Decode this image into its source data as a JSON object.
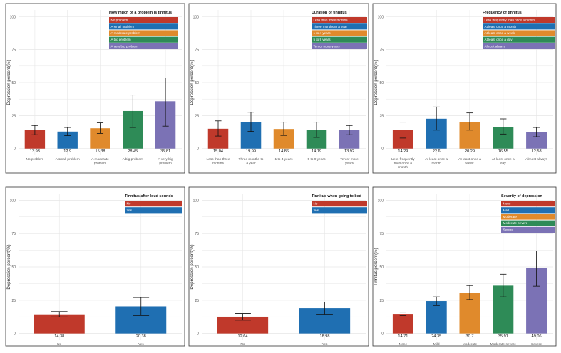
{
  "colors": {
    "red": "#c0392b",
    "blue": "#1f6fb2",
    "orange": "#e08a2c",
    "green": "#2e8b57",
    "purple": "#7b72b5",
    "grid": "#e6e6e6",
    "panel_border": "#333333"
  },
  "chart_data": [
    {
      "type": "bar",
      "ylabel": "Depression percent(%)",
      "ylim": [
        0,
        100
      ],
      "yticks": [
        "0",
        "25",
        "50",
        "75",
        "100"
      ],
      "legend_title": "How much of a problem is tinnitus",
      "categories": [
        "No problem",
        "A small problem",
        "A moderate problem",
        "A big problem",
        "A very big problem"
      ],
      "x_tick_labels": [
        [
          "No problem"
        ],
        [
          "A small problem"
        ],
        [
          "A moderate",
          "problem"
        ],
        [
          "A big problem"
        ],
        [
          "A very big",
          "problem"
        ]
      ],
      "values": [
        13.93,
        12.9,
        15.38,
        28.45,
        35.81
      ],
      "value_labels": [
        "13.93",
        "12.9",
        "15.38",
        "28.45",
        "35.81"
      ],
      "error_low": [
        10.5,
        9.8,
        11.5,
        16,
        17
      ],
      "error_high": [
        17.5,
        16,
        19.5,
        40.5,
        53.5
      ],
      "colors": [
        "#c0392b",
        "#1f6fb2",
        "#e08a2c",
        "#2e8b57",
        "#7b72b5"
      ]
    },
    {
      "type": "bar",
      "ylabel": "Depression percent(%)",
      "ylim": [
        0,
        100
      ],
      "yticks": [
        "0",
        "25",
        "50",
        "75",
        "100"
      ],
      "legend_title": "Duration of tinnitus",
      "categories": [
        "Less than three months",
        "Three months to a year",
        "1 to 4 years",
        "5 to 9 years",
        "Ten or more years"
      ],
      "x_tick_labels": [
        [
          "Less than three",
          "months"
        ],
        [
          "Three months to",
          "a year"
        ],
        [
          "1 to 4 years"
        ],
        [
          "5 to 9 years"
        ],
        [
          "Ten or more",
          "years"
        ]
      ],
      "values": [
        15.04,
        19.99,
        14.86,
        14.19,
        13.92
      ],
      "value_labels": [
        "15.04",
        "19.99",
        "14.86",
        "14.19",
        "13.92"
      ],
      "error_low": [
        9.5,
        13,
        10,
        8.5,
        10.5
      ],
      "error_high": [
        21,
        27.5,
        20,
        20,
        17.5
      ],
      "colors": [
        "#c0392b",
        "#1f6fb2",
        "#e08a2c",
        "#2e8b57",
        "#7b72b5"
      ]
    },
    {
      "type": "bar",
      "ylabel": "Depression percent(%)",
      "ylim": [
        0,
        100
      ],
      "yticks": [
        "0",
        "25",
        "50",
        "75",
        "100"
      ],
      "legend_title": "Frequency of tinnitus",
      "categories": [
        "Less frequently than once a month",
        "At least once a month",
        "At least once a week",
        "At least once a day",
        "Almost always"
      ],
      "x_tick_labels": [
        [
          "Less frequently",
          "than once a",
          "month"
        ],
        [
          "At least once a",
          "month"
        ],
        [
          "At least once a",
          "week"
        ],
        [
          "At least once a",
          "day"
        ],
        [
          "Almost always"
        ]
      ],
      "values": [
        14.29,
        22.6,
        20.29,
        16.55,
        12.58
      ],
      "value_labels": [
        "14.29",
        "22.6",
        "20.29",
        "16.55",
        "12.58"
      ],
      "error_low": [
        8,
        14,
        14,
        11,
        9
      ],
      "error_high": [
        20,
        31.5,
        27,
        22.5,
        16
      ],
      "colors": [
        "#c0392b",
        "#1f6fb2",
        "#e08a2c",
        "#2e8b57",
        "#7b72b5"
      ]
    },
    {
      "type": "bar",
      "ylabel": "Depression percent(%)",
      "ylim": [
        0,
        100
      ],
      "yticks": [
        "0",
        "25",
        "50",
        "75",
        "100"
      ],
      "legend_title": "Tinnitus after loud sounds",
      "categories": [
        "No",
        "Yes"
      ],
      "x_tick_labels": [
        [
          "No"
        ],
        [
          "Yes"
        ]
      ],
      "values": [
        14.38,
        20.38
      ],
      "value_labels": [
        "14.38",
        "20.38"
      ],
      "error_low": [
        12.5,
        13.5
      ],
      "error_high": [
        16.5,
        27
      ],
      "colors": [
        "#c0392b",
        "#1f6fb2"
      ]
    },
    {
      "type": "bar",
      "ylabel": "Depression percent(%)",
      "ylim": [
        0,
        100
      ],
      "yticks": [
        "0",
        "25",
        "50",
        "75",
        "100"
      ],
      "legend_title": "Tinnitus when going to bed",
      "categories": [
        "No",
        "Yes"
      ],
      "x_tick_labels": [
        [
          "No"
        ],
        [
          "Yes"
        ]
      ],
      "values": [
        12.64,
        18.98
      ],
      "value_labels": [
        "12.64",
        "18.98"
      ],
      "error_low": [
        10,
        14.5
      ],
      "error_high": [
        15,
        23.5
      ],
      "colors": [
        "#c0392b",
        "#1f6fb2"
      ]
    },
    {
      "type": "bar",
      "ylabel": "Tinnitus percent(%)",
      "ylim": [
        0,
        100
      ],
      "yticks": [
        "0",
        "25",
        "50",
        "75",
        "100"
      ],
      "legend_title": "Severity of depression",
      "categories": [
        "None",
        "Mild",
        "Moderate",
        "Moderate-severe",
        "Severe"
      ],
      "x_tick_labels": [
        [
          "None"
        ],
        [
          "Mild"
        ],
        [
          "Moderate"
        ],
        [
          "Moderate-severe"
        ],
        [
          "Severe"
        ]
      ],
      "values": [
        14.71,
        24.35,
        30.7,
        35.91,
        49.06
      ],
      "value_labels": [
        "14.71",
        "24.35",
        "30.7",
        "35.91",
        "49.06"
      ],
      "error_low": [
        13.5,
        21,
        25.5,
        27.5,
        35.5
      ],
      "error_high": [
        16,
        27.5,
        36,
        44.5,
        62
      ],
      "colors": [
        "#c0392b",
        "#1f6fb2",
        "#e08a2c",
        "#2e8b57",
        "#7b72b5"
      ]
    }
  ]
}
